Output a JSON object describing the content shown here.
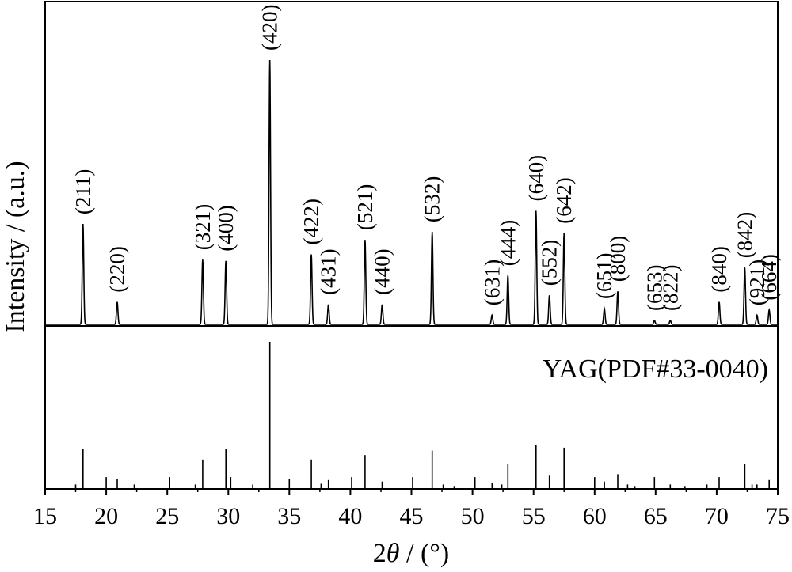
{
  "chart_data": {
    "type": "line",
    "title": "",
    "xlabel_main": "2",
    "xlabel_theta": "θ",
    "xlabel_unit": " / (°)",
    "ylabel": "Intensity / (a.u.)",
    "xlim": [
      15,
      75
    ],
    "x_ticks": [
      15,
      20,
      25,
      30,
      35,
      40,
      45,
      50,
      55,
      60,
      65,
      70,
      75
    ],
    "grid": false,
    "legend": "none",
    "series": [
      {
        "peaks": [
          {
            "x": 18.1,
            "y": 0.38,
            "label": "(211)"
          },
          {
            "x": 20.9,
            "y": 0.085,
            "label": "(220)"
          },
          {
            "x": 27.9,
            "y": 0.245,
            "label": "(321)"
          },
          {
            "x": 29.8,
            "y": 0.24,
            "label": "(400)"
          },
          {
            "x": 33.4,
            "y": 1.0,
            "label": "(420)"
          },
          {
            "x": 36.8,
            "y": 0.265,
            "label": "(422)"
          },
          {
            "x": 38.2,
            "y": 0.075,
            "label": "(431)"
          },
          {
            "x": 41.2,
            "y": 0.32,
            "label": "(521)"
          },
          {
            "x": 42.6,
            "y": 0.075,
            "label": "(440)"
          },
          {
            "x": 46.7,
            "y": 0.35,
            "label": "(532)"
          },
          {
            "x": 51.6,
            "y": 0.035,
            "label": "(631)"
          },
          {
            "x": 52.9,
            "y": 0.185,
            "label": "(444)"
          },
          {
            "x": 55.2,
            "y": 0.43,
            "label": "(640)"
          },
          {
            "x": 56.3,
            "y": 0.11,
            "label": "(552)"
          },
          {
            "x": 57.5,
            "y": 0.345,
            "label": "(642)"
          },
          {
            "x": 60.8,
            "y": 0.06,
            "label": "(651)"
          },
          {
            "x": 61.9,
            "y": 0.125,
            "label": "(800)"
          },
          {
            "x": 64.9,
            "y": 0.015,
            "label": "(653)"
          },
          {
            "x": 66.2,
            "y": 0.015,
            "label": "(822)"
          },
          {
            "x": 70.2,
            "y": 0.085,
            "label": "(840)"
          },
          {
            "x": 72.3,
            "y": 0.215,
            "label": "(842)"
          },
          {
            "x": 73.3,
            "y": 0.035,
            "label": "(921)"
          },
          {
            "x": 74.3,
            "y": 0.055,
            "label": "(664)"
          }
        ]
      },
      {
        "name": "YAG(PDF#33-0040)",
        "sticks": [
          {
            "x": 17.5,
            "y": 0.03
          },
          {
            "x": 18.1,
            "y": 0.27
          },
          {
            "x": 20.0,
            "y": 0.08
          },
          {
            "x": 20.9,
            "y": 0.07
          },
          {
            "x": 22.3,
            "y": 0.03
          },
          {
            "x": 25.2,
            "y": 0.08
          },
          {
            "x": 27.3,
            "y": 0.03
          },
          {
            "x": 27.9,
            "y": 0.2
          },
          {
            "x": 29.8,
            "y": 0.27
          },
          {
            "x": 30.2,
            "y": 0.08
          },
          {
            "x": 32.0,
            "y": 0.03
          },
          {
            "x": 33.4,
            "y": 1.0
          },
          {
            "x": 35.0,
            "y": 0.07
          },
          {
            "x": 36.8,
            "y": 0.2
          },
          {
            "x": 37.6,
            "y": 0.035
          },
          {
            "x": 38.2,
            "y": 0.06
          },
          {
            "x": 40.1,
            "y": 0.08
          },
          {
            "x": 41.2,
            "y": 0.23
          },
          {
            "x": 42.6,
            "y": 0.05
          },
          {
            "x": 45.1,
            "y": 0.08
          },
          {
            "x": 46.7,
            "y": 0.26
          },
          {
            "x": 47.6,
            "y": 0.03
          },
          {
            "x": 48.5,
            "y": 0.02
          },
          {
            "x": 50.2,
            "y": 0.08
          },
          {
            "x": 51.6,
            "y": 0.04
          },
          {
            "x": 52.4,
            "y": 0.03
          },
          {
            "x": 52.9,
            "y": 0.17
          },
          {
            "x": 55.2,
            "y": 0.3
          },
          {
            "x": 56.3,
            "y": 0.09
          },
          {
            "x": 57.5,
            "y": 0.28
          },
          {
            "x": 60.0,
            "y": 0.08
          },
          {
            "x": 60.8,
            "y": 0.05
          },
          {
            "x": 61.9,
            "y": 0.1
          },
          {
            "x": 62.7,
            "y": 0.03
          },
          {
            "x": 63.3,
            "y": 0.02
          },
          {
            "x": 64.9,
            "y": 0.08
          },
          {
            "x": 66.2,
            "y": 0.03
          },
          {
            "x": 67.4,
            "y": 0.02
          },
          {
            "x": 69.2,
            "y": 0.03
          },
          {
            "x": 70.2,
            "y": 0.08
          },
          {
            "x": 72.3,
            "y": 0.17
          },
          {
            "x": 72.9,
            "y": 0.03
          },
          {
            "x": 73.3,
            "y": 0.03
          },
          {
            "x": 74.3,
            "y": 0.06
          }
        ]
      }
    ]
  }
}
